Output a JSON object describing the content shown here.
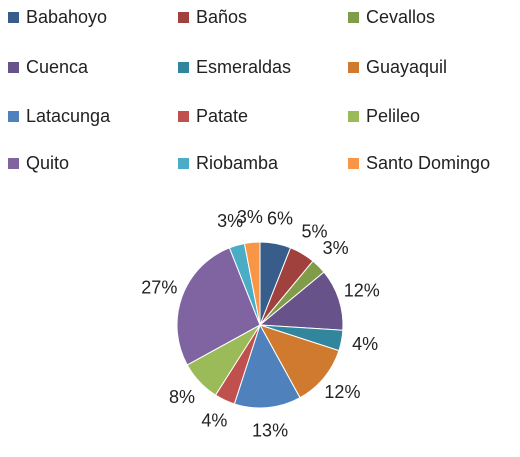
{
  "chart_data": {
    "type": "pie",
    "categories": [
      "Babahoyo",
      "Baños",
      "Cevallos",
      "Cuenca",
      "Esmeraldas",
      "Guayaquil",
      "Latacunga",
      "Patate",
      "Pelileo",
      "Quito",
      "Riobamba",
      "Santo Domingo"
    ],
    "values": [
      6,
      5,
      3,
      12,
      4,
      12,
      13,
      4,
      8,
      27,
      3,
      3
    ],
    "value_labels": [
      "6%",
      "5%",
      "3%",
      "12%",
      "4%",
      "12%",
      "13%",
      "4%",
      "8%",
      "27%",
      "3%",
      "3%"
    ],
    "colors": [
      "#385d8a",
      "#a0413e",
      "#809c48",
      "#67538a",
      "#31859c",
      "#d07a30",
      "#4f81bd",
      "#c0504d",
      "#9bbb59",
      "#8064a2",
      "#4bacc6",
      "#f79646"
    ],
    "legend": "top"
  }
}
